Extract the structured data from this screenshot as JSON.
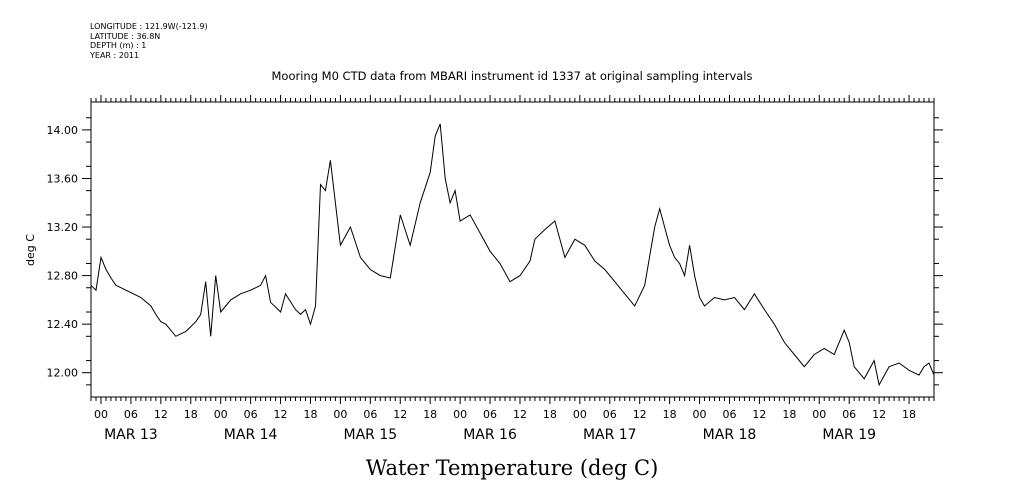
{
  "header": {
    "longitude": "LONGITUDE : 121.9W(-121.9)",
    "latitude": "LATITUDE : 36.8N",
    "depth": "DEPTH (m) : 1",
    "year": "YEAR : 2011"
  },
  "chart_data": {
    "type": "line",
    "title": "Mooring M0 CTD data from MBARI instrument id 1337 at original sampling intervals",
    "xlabel": "Water Temperature (deg C)",
    "ylabel": "deg C",
    "ylim": [
      11.8,
      14.23
    ],
    "yticks": [
      12.0,
      12.4,
      12.8,
      13.2,
      13.6,
      14.0
    ],
    "ytick_labels": [
      "12.00",
      "12.40",
      "12.80",
      "13.20",
      "13.60",
      "14.00"
    ],
    "xlim": [
      "2011-03-12T22:00",
      "2011-03-19T23:00"
    ],
    "x_hour_labels": [
      "00",
      "06",
      "12",
      "18",
      "00",
      "06",
      "12",
      "18",
      "00",
      "06",
      "12",
      "18",
      "00",
      "06",
      "12",
      "18",
      "00",
      "06",
      "12",
      "18",
      "00",
      "06",
      "12",
      "18",
      "00",
      "06",
      "12",
      "18"
    ],
    "x_day_labels": [
      "MAR 13",
      "MAR 14",
      "MAR 15",
      "MAR 16",
      "MAR 17",
      "MAR 18",
      "MAR 19"
    ],
    "grid": false,
    "series": [
      {
        "x": [
          "2011-03-12T22:00",
          "2011-03-12T23:00",
          "2011-03-13T00:00",
          "2011-03-13T01:00",
          "2011-03-13T02:00",
          "2011-03-13T03:00",
          "2011-03-13T04:00",
          "2011-03-13T06:00",
          "2011-03-13T08:00",
          "2011-03-13T10:00",
          "2011-03-13T11:00",
          "2011-03-13T12:00",
          "2011-03-13T13:00",
          "2011-03-13T15:00",
          "2011-03-13T17:00",
          "2011-03-13T18:00",
          "2011-03-13T19:00",
          "2011-03-13T20:00",
          "2011-03-13T21:00",
          "2011-03-13T22:00",
          "2011-03-13T23:00",
          "2011-03-14T00:00",
          "2011-03-14T01:00",
          "2011-03-14T02:00",
          "2011-03-14T04:00",
          "2011-03-14T06:00",
          "2011-03-14T08:00",
          "2011-03-14T09:00",
          "2011-03-14T10:00",
          "2011-03-14T12:00",
          "2011-03-14T13:00",
          "2011-03-14T15:00",
          "2011-03-14T16:00",
          "2011-03-14T17:00",
          "2011-03-14T18:00",
          "2011-03-14T19:00",
          "2011-03-14T20:00",
          "2011-03-14T21:00",
          "2011-03-14T22:00",
          "2011-03-14T23:00",
          "2011-03-15T00:00",
          "2011-03-15T02:00",
          "2011-03-15T04:00",
          "2011-03-15T06:00",
          "2011-03-15T08:00",
          "2011-03-15T10:00",
          "2011-03-15T12:00",
          "2011-03-15T14:00",
          "2011-03-15T16:00",
          "2011-03-15T18:00",
          "2011-03-15T19:00",
          "2011-03-15T20:00",
          "2011-03-15T21:00",
          "2011-03-15T22:00",
          "2011-03-15T23:00",
          "2011-03-16T00:00",
          "2011-03-16T02:00",
          "2011-03-16T04:00",
          "2011-03-16T06:00",
          "2011-03-16T08:00",
          "2011-03-16T10:00",
          "2011-03-16T12:00",
          "2011-03-16T14:00",
          "2011-03-16T15:00",
          "2011-03-16T17:00",
          "2011-03-16T19:00",
          "2011-03-16T21:00",
          "2011-03-16T23:00",
          "2011-03-17T01:00",
          "2011-03-17T03:00",
          "2011-03-17T05:00",
          "2011-03-17T07:00",
          "2011-03-17T09:00",
          "2011-03-17T11:00",
          "2011-03-17T13:00",
          "2011-03-17T15:00",
          "2011-03-17T16:00",
          "2011-03-17T17:00",
          "2011-03-17T18:00",
          "2011-03-17T19:00",
          "2011-03-17T20:00",
          "2011-03-17T21:00",
          "2011-03-17T22:00",
          "2011-03-17T23:00",
          "2011-03-18T00:00",
          "2011-03-18T01:00",
          "2011-03-18T03:00",
          "2011-03-18T05:00",
          "2011-03-18T07:00",
          "2011-03-18T09:00",
          "2011-03-18T11:00",
          "2011-03-18T13:00",
          "2011-03-18T15:00",
          "2011-03-18T17:00",
          "2011-03-18T19:00",
          "2011-03-18T21:00",
          "2011-03-18T23:00",
          "2011-03-19T01:00",
          "2011-03-19T03:00",
          "2011-03-19T05:00",
          "2011-03-19T06:00",
          "2011-03-19T07:00",
          "2011-03-19T09:00",
          "2011-03-19T11:00",
          "2011-03-19T12:00",
          "2011-03-19T14:00",
          "2011-03-19T16:00",
          "2011-03-19T18:00",
          "2011-03-19T20:00",
          "2011-03-19T21:00",
          "2011-03-19T22:00",
          "2011-03-19T23:00"
        ],
        "y": [
          12.72,
          12.68,
          12.95,
          12.85,
          12.78,
          12.72,
          12.7,
          12.66,
          12.62,
          12.55,
          12.48,
          12.42,
          12.4,
          12.3,
          12.34,
          12.38,
          12.42,
          12.48,
          12.75,
          12.3,
          12.8,
          12.5,
          12.55,
          12.6,
          12.65,
          12.68,
          12.72,
          12.8,
          12.58,
          12.5,
          12.65,
          12.52,
          12.48,
          12.52,
          12.4,
          12.55,
          13.55,
          13.5,
          13.75,
          13.4,
          13.05,
          13.2,
          12.95,
          12.85,
          12.8,
          12.78,
          13.3,
          13.05,
          13.4,
          13.65,
          13.95,
          14.05,
          13.6,
          13.4,
          13.5,
          13.25,
          13.3,
          13.15,
          13.0,
          12.9,
          12.75,
          12.8,
          12.92,
          13.1,
          13.18,
          13.25,
          12.95,
          13.1,
          13.05,
          12.92,
          12.85,
          12.75,
          12.65,
          12.55,
          12.72,
          13.2,
          13.35,
          13.2,
          13.05,
          12.95,
          12.9,
          12.8,
          13.05,
          12.8,
          12.62,
          12.55,
          12.62,
          12.6,
          12.62,
          12.52,
          12.65,
          12.52,
          12.4,
          12.25,
          12.15,
          12.05,
          12.15,
          12.2,
          12.15,
          12.35,
          12.25,
          12.05,
          11.95,
          12.1,
          11.9,
          12.05,
          12.08,
          12.02,
          11.98,
          12.05,
          12.08,
          11.98
        ]
      }
    ]
  }
}
